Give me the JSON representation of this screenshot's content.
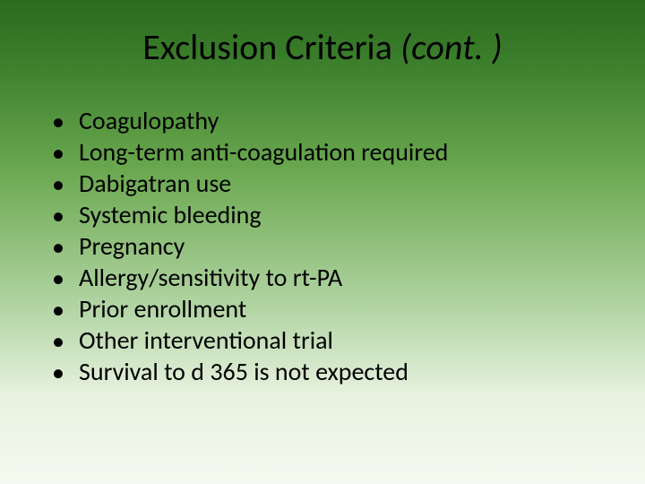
{
  "slide": {
    "title_main": "Exclusion Criteria ",
    "title_cont": "(cont. )",
    "title_fontsize": 40,
    "body_fontsize": 28,
    "text_color": "#000000",
    "background_gradient": [
      "#2a6b1f",
      "#3a7d2a",
      "#6aa84f",
      "#b6d7a8",
      "#e8f2e0",
      "#f5faf0"
    ],
    "bullets": [
      "Coagulopathy",
      "Long-term anti-coagulation required",
      "Dabigatran use",
      "Systemic bleeding",
      "Pregnancy",
      "Allergy/sensitivity to rt-PA",
      "Prior enrollment",
      "Other interventional trial",
      "Survival to d 365 is not expected"
    ]
  }
}
